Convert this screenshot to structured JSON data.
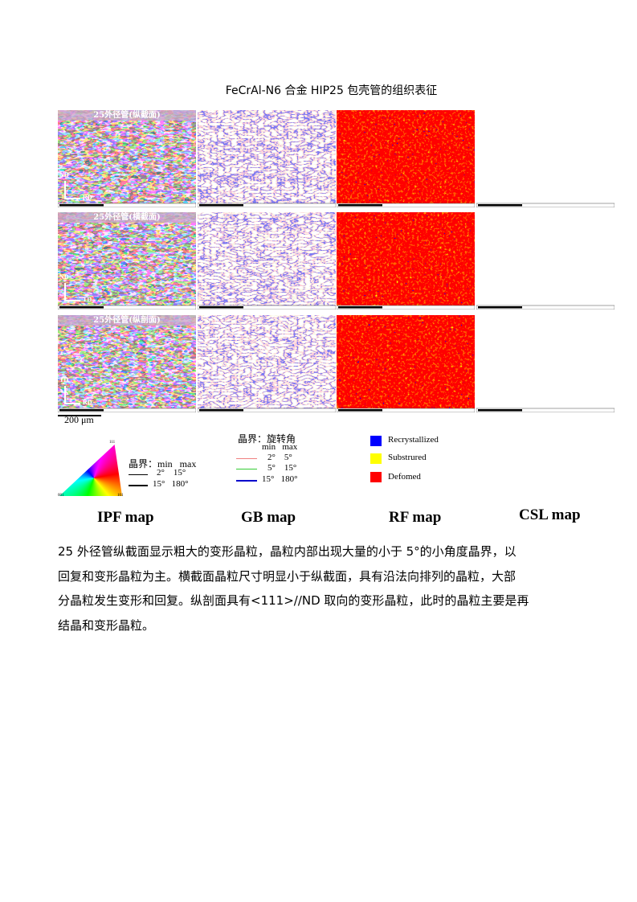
{
  "title": "FeCrAl-N6 合金 HIP25 包壳管的组织表征",
  "panels": [
    {
      "label": "25外径管(纵截面)",
      "axis_up": "ND",
      "axis_right": "RD"
    },
    {
      "label": "25外径管(横截面)",
      "axis_up": "ND",
      "axis_right": "TD"
    },
    {
      "label": "25外径管(纵剖面)",
      "axis_up": "TD",
      "axis_right": "RD"
    }
  ],
  "scale_bar": "200 μm",
  "ipf_legend": {
    "corners": [
      "001",
      "101",
      "111"
    ],
    "header": "晶界：min   max",
    "rows": [
      "2°    15°",
      "15°   180°"
    ]
  },
  "gb_legend": {
    "header": "晶界：旋转角",
    "subheader": "min   max",
    "rows": [
      "2°    5°",
      "5°    15°",
      "15°   180°"
    ]
  },
  "rf_legend": {
    "items": [
      "Recrystallized",
      "Substrured",
      "Defomed"
    ]
  },
  "captions": [
    "IPF map",
    "GB map",
    "RF map",
    "CSL map"
  ],
  "paragraph": [
    "25 外径管纵截面显示粗大的变形晶粒，晶粒内部出现大量的小于 5°的小角度晶界，以",
    "回复和变形晶粒为主。横截面晶粒尺寸明显小于纵截面，具有沿法向排列的晶粒，大部",
    "分晶粒发生变形和回复。纵剖面具有<111>//ND 取向的变形晶粒，此时的晶粒主要是再",
    "结晶和变形晶粒。"
  ]
}
